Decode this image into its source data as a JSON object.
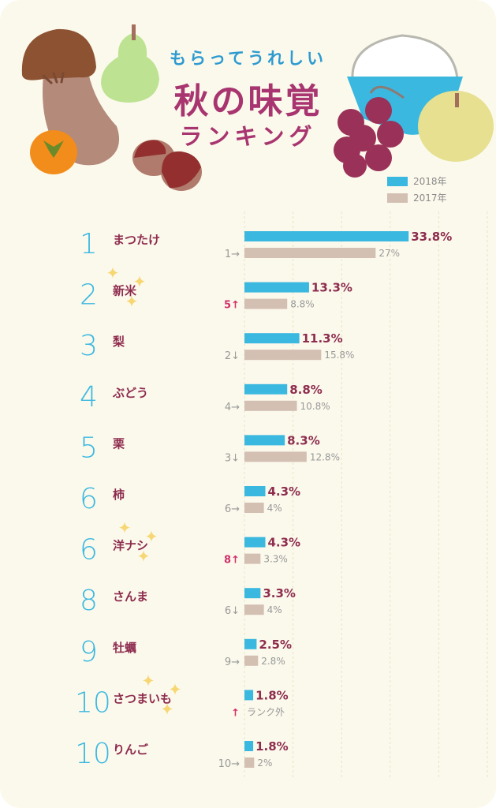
{
  "title": {
    "subtitle": "もらってうれしい",
    "main": "秋の味覚",
    "sub2": "ランキング"
  },
  "colors": {
    "series_2018": "#3bb8e0",
    "series_2017": "#d4bfb3",
    "rank": "#3bb8e0",
    "label": "#8e2c4e",
    "rise": "#d0306a"
  },
  "legend": [
    {
      "label": "2018年",
      "color": "#3bb8e0"
    },
    {
      "label": "2017年",
      "color": "#d4bfb3"
    }
  ],
  "chart_data": {
    "type": "bar",
    "orientation": "horizontal",
    "unit": "%",
    "xlim": [
      0,
      50
    ],
    "grid": true,
    "grid_step": 10,
    "legend_placement": "top-right",
    "rows": [
      {
        "rank": "1",
        "name": "まつたけ",
        "v2018": 33.8,
        "v2017": 27,
        "label2018": "33.8%",
        "label2017": "27%",
        "prev": "1→",
        "trend": "same",
        "sparkle": false
      },
      {
        "rank": "2",
        "name": "新米",
        "v2018": 13.3,
        "v2017": 8.8,
        "label2018": "13.3%",
        "label2017": "8.8%",
        "prev": "5↑",
        "trend": "up",
        "sparkle": true
      },
      {
        "rank": "3",
        "name": "梨",
        "v2018": 11.3,
        "v2017": 15.8,
        "label2018": "11.3%",
        "label2017": "15.8%",
        "prev": "2↓",
        "trend": "down",
        "sparkle": false
      },
      {
        "rank": "4",
        "name": "ぶどう",
        "v2018": 8.8,
        "v2017": 10.8,
        "label2018": "8.8%",
        "label2017": "10.8%",
        "prev": "4→",
        "trend": "same",
        "sparkle": false
      },
      {
        "rank": "5",
        "name": "栗",
        "v2018": 8.3,
        "v2017": 12.8,
        "label2018": "8.3%",
        "label2017": "12.8%",
        "prev": "3↓",
        "trend": "down",
        "sparkle": false
      },
      {
        "rank": "6",
        "name": "柿",
        "v2018": 4.3,
        "v2017": 4,
        "label2018": "4.3%",
        "label2017": "4%",
        "prev": "6→",
        "trend": "same",
        "sparkle": false
      },
      {
        "rank": "6",
        "name": "洋ナシ",
        "v2018": 4.3,
        "v2017": 3.3,
        "label2018": "4.3%",
        "label2017": "3.3%",
        "prev": "8↑",
        "trend": "up",
        "sparkle": true
      },
      {
        "rank": "8",
        "name": "さんま",
        "v2018": 3.3,
        "v2017": 4,
        "label2018": "3.3%",
        "label2017": "4%",
        "prev": "6↓",
        "trend": "down",
        "sparkle": false
      },
      {
        "rank": "9",
        "name": "牡蠣",
        "v2018": 2.5,
        "v2017": 2.8,
        "label2018": "2.5%",
        "label2017": "2.8%",
        "prev": "9→",
        "trend": "same",
        "sparkle": false
      },
      {
        "rank": "10",
        "name": "さつまいも",
        "v2018": 1.8,
        "v2017": null,
        "label2018": "1.8%",
        "label2017": "ランク外",
        "prev": "↑",
        "trend": "up",
        "sparkle": true
      },
      {
        "rank": "10",
        "name": "りんご",
        "v2018": 1.8,
        "v2017": 2,
        "label2018": "1.8%",
        "label2017": "2%",
        "prev": "10→",
        "trend": "same",
        "sparkle": false
      }
    ]
  }
}
